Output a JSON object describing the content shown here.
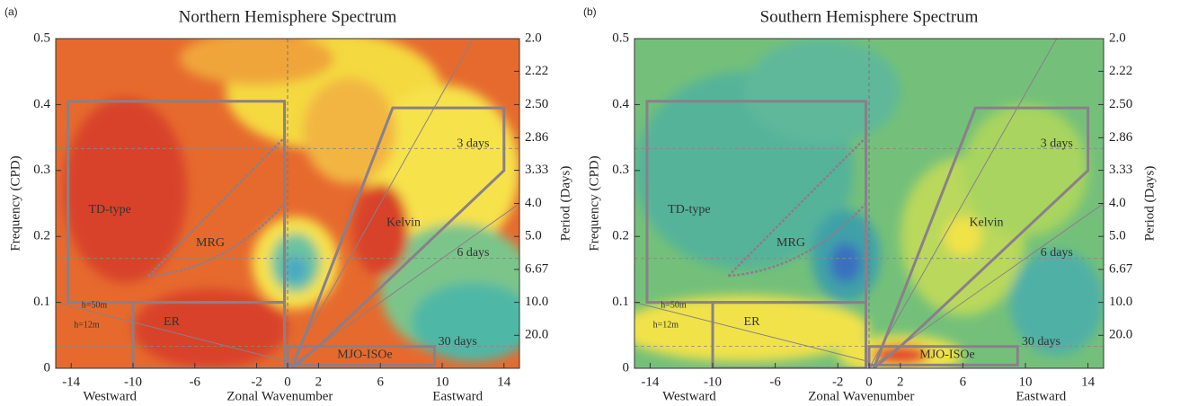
{
  "chart_data": [
    {
      "type": "contour",
      "panel_label": "(a)",
      "title": "Northern Hemisphere Spectrum",
      "x_label": "Zonal Wavenumber",
      "x_left_label": "Westward",
      "x_right_label": "Eastward",
      "y_label": "Frequency (CPD)",
      "y2_label": "Period (Days)",
      "xlim": [
        -15,
        15
      ],
      "xticks": [
        -14,
        -10,
        -6,
        -2,
        0,
        2,
        6,
        10,
        14
      ],
      "ylim": [
        0,
        0.5
      ],
      "yticks": [
        0,
        0.1,
        0.2,
        0.3,
        0.4,
        0.5
      ],
      "y2scale": "reciprocal",
      "y2ticks": [
        {
          "value": 2,
          "label": "2.0"
        },
        2.22,
        {
          "value": 2.5,
          "label": "2.50"
        },
        2.86,
        3.33,
        {
          "value": 4,
          "label": "4.0"
        },
        {
          "value": 5,
          "label": "5.0"
        },
        6.67,
        {
          "value": 10,
          "label": "10.0"
        },
        {
          "value": 20,
          "label": "20.0"
        }
      ],
      "annotations": [
        "TD-type",
        "MRG",
        "Kelvin",
        "ER",
        "MJO-ISOe",
        "3 days",
        "6 days",
        "30 days",
        "h=50m",
        "h=12m"
      ]
    },
    {
      "type": "contour",
      "panel_label": "(b)",
      "title": "Southern Hemisphere Spectrum",
      "x_label": "Zonal Wavenumber",
      "x_left_label": "Westward",
      "x_right_label": "Eastward",
      "y_label": "Frequency (CPD)",
      "y2_label": "Period (Days)",
      "xlim": [
        -15,
        15
      ],
      "xticks": [
        -14,
        -10,
        -6,
        -2,
        0,
        2,
        6,
        10,
        14
      ],
      "ylim": [
        0,
        0.5
      ],
      "yticks": [
        0,
        0.1,
        0.2,
        0.3,
        0.4,
        0.5
      ],
      "y2scale": "reciprocal",
      "y2ticks": [
        {
          "value": 2,
          "label": "2.0"
        },
        2.22,
        {
          "value": 2.5,
          "label": "2.50"
        },
        2.86,
        3.33,
        {
          "value": 4,
          "label": "4.0"
        },
        {
          "value": 5,
          "label": "5.0"
        },
        6.67,
        {
          "value": 10,
          "label": "10.0"
        },
        {
          "value": 20,
          "label": "20.0"
        }
      ],
      "annotations": [
        "TD-type",
        "MRG",
        "Kelvin",
        "ER",
        "MJO-ISOe",
        "3 days",
        "6 days",
        "30 days",
        "h=50m",
        "h=12m"
      ]
    }
  ]
}
